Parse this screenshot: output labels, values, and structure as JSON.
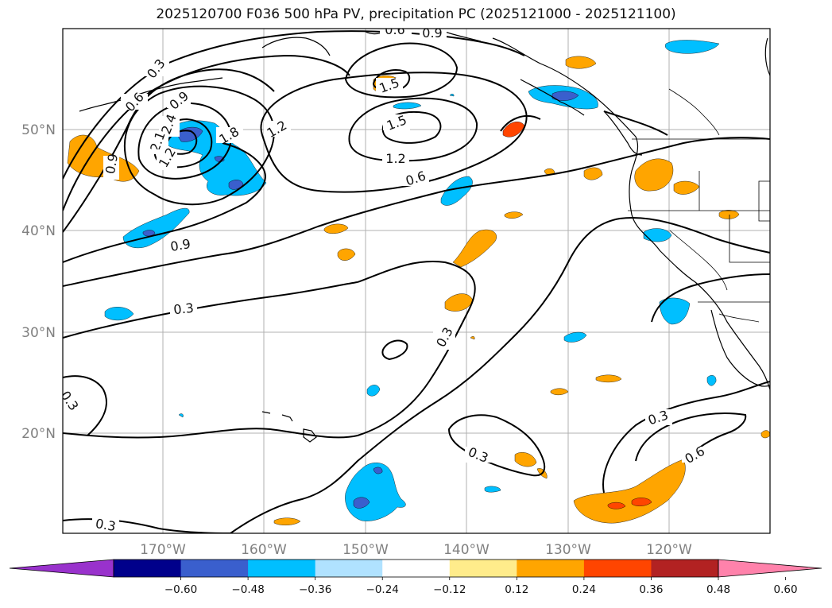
{
  "title": "2025120700 F036 500 hPa PV, precipitation PC (2025121000 - 2025121100)",
  "lon_ticks": [
    "170°W",
    "160°W",
    "150°W",
    "140°W",
    "130°W",
    "120°W"
  ],
  "lat_ticks": [
    "50°N",
    "40°N",
    "30°N",
    "20°N"
  ],
  "contour_labels": [
    {
      "text": "0.3"
    },
    {
      "text": "0.6"
    },
    {
      "text": "0.9"
    },
    {
      "text": "1.2"
    },
    {
      "text": "1.8"
    },
    {
      "text": "1.2"
    },
    {
      "text": "1.5"
    },
    {
      "text": "1.5"
    },
    {
      "text": "1.2"
    },
    {
      "text": "0.6"
    },
    {
      "text": "0.9"
    },
    {
      "text": "0.9"
    },
    {
      "text": "0.3"
    },
    {
      "text": "0.3"
    },
    {
      "text": "0.3"
    },
    {
      "text": "0.3"
    },
    {
      "text": "0.3"
    },
    {
      "text": "0.6"
    },
    {
      "text": "0.3"
    },
    {
      "text": "0.6"
    },
    {
      "text": "0.9"
    },
    {
      "text": "2.4"
    },
    {
      "text": "2.1"
    },
    {
      "text": "1.2"
    }
  ],
  "colorbar": {
    "colors": [
      "#9932CC",
      "#00008B",
      "#3A5FCD",
      "#00BFFF",
      "#B0E2FF",
      "#FFFFFF",
      "#FFEC8B",
      "#FFA500",
      "#FF4500",
      "#B22222",
      "#FF82AB"
    ],
    "tick_labels": [
      "−0.60",
      "−0.48",
      "−0.36",
      "−0.24",
      "−0.12",
      "0.12",
      "0.24",
      "0.36",
      "0.48",
      "0.60"
    ]
  },
  "colors": {
    "positive_pc": "#FFA500",
    "strong_positive_pc": "#FF4500",
    "negative_pc": "#00BFFF",
    "strong_negative_pc": "#3A5FCD"
  }
}
